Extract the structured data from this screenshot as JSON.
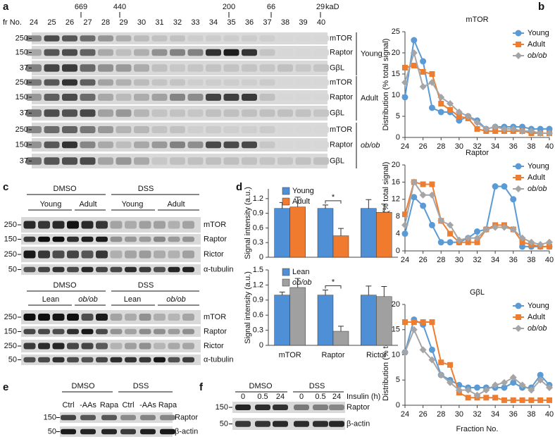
{
  "panels": {
    "a": {
      "label": "a",
      "fraction_label": "fr No.",
      "fractions": [
        "24",
        "25",
        "26",
        "27",
        "28",
        "29",
        "30",
        "31",
        "32",
        "33",
        "34",
        "35",
        "36",
        "37",
        "38",
        "39",
        "40"
      ],
      "markers": [
        "669",
        "440",
        "200",
        "66",
        "29"
      ],
      "marker_unit": "kaD",
      "groups": [
        {
          "name": "Young",
          "mw": [
            "250",
            "150",
            "37"
          ],
          "proteins": [
            "mTOR",
            "Raptor",
            "GβL"
          ]
        },
        {
          "name": "Adult",
          "mw": [
            "250",
            "150",
            "37"
          ],
          "proteins": [
            "mTOR",
            "Raptor",
            "GβL"
          ]
        },
        {
          "name": "ob/ob",
          "mw": [
            "250",
            "150",
            "37"
          ],
          "proteins": [
            "mTOR",
            "Raptor",
            "GβL"
          ]
        }
      ]
    },
    "b": {
      "label": "b"
    },
    "c": {
      "label": "c",
      "blots": [
        {
          "treatments": [
            "DMSO",
            "DSS"
          ],
          "groups": [
            "Young",
            "Adult",
            "Young",
            "Adult"
          ],
          "mw": [
            "250",
            "150",
            "250",
            "50"
          ],
          "proteins": [
            "mTOR",
            "Raptor",
            "Rictor",
            "α-tubulin"
          ]
        },
        {
          "treatments": [
            "DMSO",
            "DSS"
          ],
          "groups": [
            "Lean",
            "ob/ob",
            "Lean",
            "ob/ob"
          ],
          "mw": [
            "250",
            "150",
            "250",
            "50"
          ],
          "proteins": [
            "mTOR",
            "Raptor",
            "Rictor",
            "α-tubulin"
          ]
        }
      ]
    },
    "d": {
      "label": "d"
    },
    "e": {
      "label": "e",
      "treatments": [
        "DMSO",
        "DSS"
      ],
      "conditions": [
        "Ctrl",
        "-AAs",
        "Rapa",
        "Ctrl",
        "-AAs",
        "Rapa"
      ],
      "mw": [
        "150",
        "50"
      ],
      "proteins": [
        "Raptor",
        "β-actin"
      ]
    },
    "f": {
      "label": "f",
      "treatments": [
        "DMSO",
        "DSS"
      ],
      "times": [
        "0",
        "0.5",
        "24",
        "0",
        "0.5",
        "24"
      ],
      "time_label": "Insulin (h)",
      "mw": [
        "150",
        "50"
      ],
      "proteins": [
        "Raptor",
        "β-actin"
      ]
    }
  },
  "chart_data": [
    {
      "type": "line",
      "title": "mTOR",
      "ylabel": "Distribution (% total signal)",
      "x": [
        24,
        25,
        26,
        27,
        28,
        29,
        30,
        31,
        32,
        33,
        34,
        35,
        36,
        37,
        38,
        39,
        40
      ],
      "xlim": [
        24,
        40
      ],
      "xticks": [
        24,
        26,
        28,
        30,
        32,
        34,
        36,
        38,
        40
      ],
      "ylim": [
        0,
        25
      ],
      "yticks": [
        0,
        5,
        10,
        15,
        20,
        25
      ],
      "legend": "upper right",
      "series": [
        {
          "name": "Young",
          "color": "#5b9bd5",
          "marker": "circle",
          "values": [
            9.5,
            23,
            18,
            7,
            6,
            6,
            4,
            5,
            4,
            2,
            2.5,
            2.5,
            2.5,
            2.5,
            2,
            2,
            2
          ]
        },
        {
          "name": "Adult",
          "color": "#ed7d31",
          "marker": "square",
          "values": [
            16.5,
            17,
            15.5,
            15,
            8,
            6.5,
            5,
            4.5,
            2,
            1.5,
            1.5,
            1.5,
            1.5,
            1.5,
            1,
            1,
            1
          ]
        },
        {
          "name": "ob/ob",
          "color": "#a5a5a5",
          "marker": "diamond",
          "values": [
            13,
            20,
            12,
            13,
            9.5,
            8,
            6,
            5,
            3.5,
            2,
            2.5,
            2,
            2,
            1.5,
            1.5,
            1,
            1
          ]
        }
      ]
    },
    {
      "type": "line",
      "title": "Raptor",
      "ylabel": "Distribution (% total signal)",
      "x": [
        24,
        25,
        26,
        27,
        28,
        29,
        30,
        31,
        32,
        33,
        34,
        35,
        36,
        37,
        38,
        39,
        40
      ],
      "xlim": [
        24,
        40
      ],
      "xticks": [
        24,
        26,
        28,
        30,
        32,
        34,
        36,
        38,
        40
      ],
      "ylim": [
        0,
        20
      ],
      "yticks": [
        0,
        4,
        8,
        12,
        16,
        20
      ],
      "legend": "upper right",
      "series": [
        {
          "name": "Young",
          "color": "#5b9bd5",
          "marker": "circle",
          "values": [
            4,
            12.5,
            10.5,
            6,
            2,
            2,
            2,
            3,
            4.5,
            5,
            15,
            15,
            12,
            1,
            1,
            1,
            1
          ]
        },
        {
          "name": "Adult",
          "color": "#ed7d31",
          "marker": "square",
          "values": [
            8.5,
            16,
            15.5,
            15.5,
            7,
            4,
            2,
            2,
            2,
            5,
            6,
            6,
            5,
            2,
            1.5,
            1,
            1
          ]
        },
        {
          "name": "ob/ob",
          "color": "#a5a5a5",
          "marker": "diamond",
          "values": [
            6,
            16,
            13,
            13,
            7,
            6,
            2.5,
            3,
            3,
            5,
            5.5,
            5.5,
            5,
            3,
            2,
            1.5,
            2
          ]
        }
      ]
    },
    {
      "type": "line",
      "title": "GβL",
      "ylabel": "Distribution (% total signal)",
      "xlabel": "Fraction No.",
      "x": [
        24,
        25,
        26,
        27,
        28,
        29,
        30,
        31,
        32,
        33,
        34,
        35,
        36,
        37,
        38,
        39,
        40
      ],
      "xlim": [
        24,
        40
      ],
      "xticks": [
        24,
        26,
        28,
        30,
        32,
        34,
        36,
        38,
        40
      ],
      "ylim": [
        0,
        20
      ],
      "yticks": [
        0,
        5,
        10,
        15,
        20
      ],
      "legend": "upper right",
      "series": [
        {
          "name": "Young",
          "color": "#5b9bd5",
          "marker": "circle",
          "values": [
            10.5,
            17,
            16,
            11,
            6,
            5,
            4,
            3.5,
            3.5,
            3.5,
            3.5,
            3.5,
            4.5,
            3.5,
            3.5,
            6,
            4
          ]
        },
        {
          "name": "Adult",
          "color": "#ed7d31",
          "marker": "square",
          "values": [
            16.5,
            16.5,
            16.5,
            16.5,
            8.5,
            8,
            2.5,
            1.5,
            1.5,
            1.5,
            1.5,
            1,
            1,
            1,
            1,
            1,
            1
          ]
        },
        {
          "name": "ob/ob",
          "color": "#a5a5a5",
          "marker": "diamond",
          "values": [
            10.5,
            15,
            11,
            9,
            6,
            4.5,
            3,
            3,
            2,
            3,
            4,
            4.5,
            5.5,
            4,
            3,
            5,
            3.5
          ]
        }
      ]
    },
    {
      "type": "bar",
      "ylabel": "Signal intensity (a.u.)",
      "categories": [
        null,
        null,
        null
      ],
      "ylim": [
        0,
        1.4
      ],
      "yticks": [
        0,
        0.3,
        0.6,
        0.9,
        1.2
      ],
      "legend": "upper left",
      "annotation": "*",
      "series": [
        {
          "name": "Young",
          "color": "#4f8fd6",
          "values": [
            1,
            1,
            1
          ],
          "errors": [
            0.12,
            0.07,
            0.18
          ]
        },
        {
          "name": "Adult",
          "color": "#f07b2e",
          "values": [
            1.03,
            0.44,
            0.92
          ],
          "errors": [
            0.2,
            0.15,
            0.17
          ]
        }
      ]
    },
    {
      "type": "bar",
      "ylabel": "Signal intensity (a.u.)",
      "categories": [
        "mTOR",
        "Raptor",
        "Rictor"
      ],
      "ylim": [
        0,
        1.5
      ],
      "yticks": [
        0,
        0.3,
        0.6,
        0.9,
        1.2,
        1.5
      ],
      "legend": "upper left",
      "annotation": "*",
      "series": [
        {
          "name": "Lean",
          "color": "#4f8fd6",
          "values": [
            1,
            1,
            1
          ],
          "errors": [
            0.06,
            0.1,
            0.18
          ]
        },
        {
          "name": "ob/ob",
          "color": "#a0a0a0",
          "values": [
            1.15,
            0.28,
            0.97
          ],
          "errors": [
            0.18,
            0.1,
            0.2
          ]
        }
      ]
    }
  ]
}
